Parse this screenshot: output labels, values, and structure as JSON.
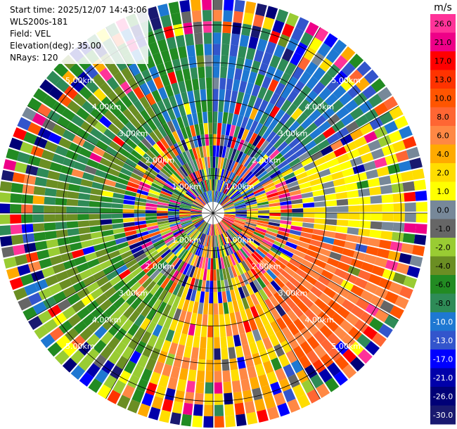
{
  "header": {
    "start_time": "Start time: 2025/12/07 14:43:06",
    "station": "WLS200s-181",
    "field": "Field: VEL",
    "elevation": "Elevation(deg): 35.00",
    "nrays": "NRays: 120"
  },
  "chart_data": {
    "type": "ppi-polar",
    "field": "VEL",
    "nrays": 120,
    "n_gates": 19,
    "max_range_km": 5.7,
    "range_rings_km": [
      1,
      2,
      3,
      4,
      5
    ],
    "ring_labels": [
      "1.00km",
      "2.00km",
      "3.00km",
      "4.00km",
      "5.00km"
    ],
    "colorbar": {
      "unit": "m/s",
      "ticks": [
        "26.0",
        "21.0",
        "17.0",
        "13.0",
        "10.0",
        "8.0",
        "6.0",
        "4.0",
        "2.0",
        "1.0",
        "0.0",
        "-1.0",
        "-2.0",
        "-4.0",
        "-6.0",
        "-8.0",
        "-10.0",
        "-13.0",
        "-17.0",
        "-21.0",
        "-26.0",
        "-30.0"
      ],
      "colors": [
        "#ff3399",
        "#ee0088",
        "#ff0000",
        "#ff3300",
        "#ff5500",
        "#ff6633",
        "#ff8844",
        "#ffaa00",
        "#ffdd00",
        "#ffff00",
        "#778899",
        "#666666",
        "#99cc33",
        "#6b8e23",
        "#228b22",
        "#2e8b57",
        "#1e78d2",
        "#3355cc",
        "#0000ff",
        "#0000aa",
        "#000077",
        "#191970"
      ]
    },
    "wind_sectors": [
      {
        "dir_deg_start": 0,
        "dir_deg_end": 60,
        "color_index": 16,
        "note": "north-east: blue"
      },
      {
        "dir_deg_start": 60,
        "dir_deg_end": 100,
        "color_index": 9,
        "note": "east: yellow"
      },
      {
        "dir_deg_start": 100,
        "dir_deg_end": 150,
        "color_index": 5,
        "note": "south-east: orange-red"
      },
      {
        "dir_deg_start": 150,
        "dir_deg_end": 200,
        "color_index": 7,
        "note": "south: orange/yellow"
      },
      {
        "dir_deg_start": 200,
        "dir_deg_end": 260,
        "color_index": 13,
        "note": "south-west: olive"
      },
      {
        "dir_deg_start": 260,
        "dir_deg_end": 330,
        "color_index": 14,
        "note": "west: green"
      },
      {
        "dir_deg_start": 330,
        "dir_deg_end": 360,
        "color_index": 15,
        "note": "north-west: sea green"
      }
    ]
  }
}
